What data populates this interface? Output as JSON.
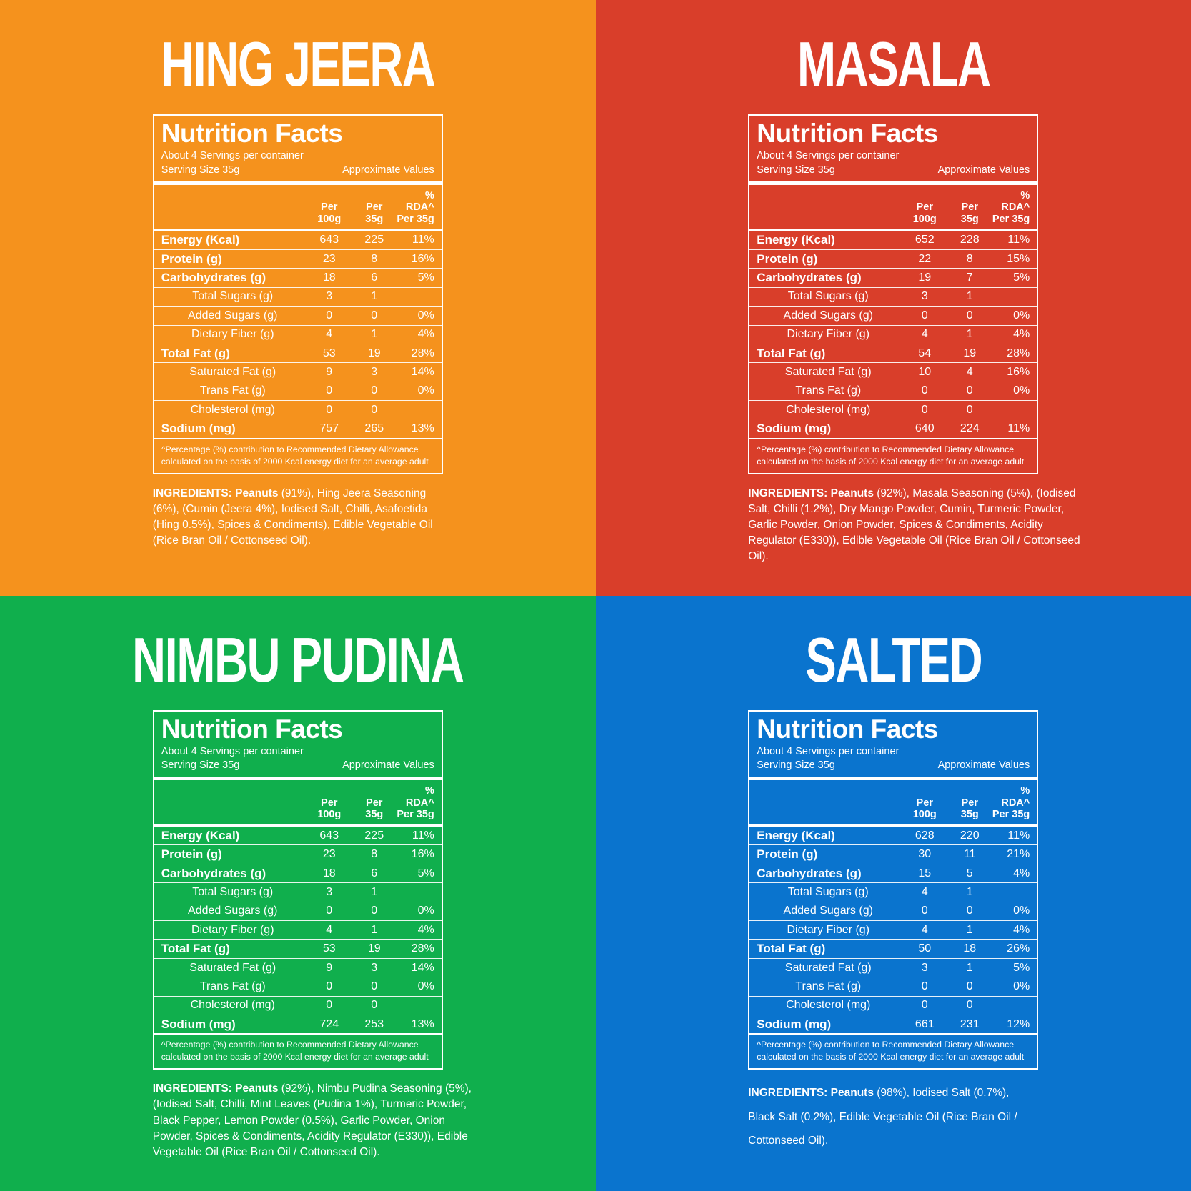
{
  "table": {
    "title": "Nutrition Facts",
    "servings": "About 4 Servings per container",
    "serving_size": "Serving Size 35g",
    "approximate": "Approximate Values",
    "col1_l1": "Per",
    "col1_l2": "100g",
    "col2_l1": "Per",
    "col2_l2": "35g",
    "col3_l1": "% RDA^",
    "col3_l2": "Per 35g",
    "footnote": "^Percentage (%) contribution to Recommended Dietary Allowance calculated on the basis of 2000 Kcal energy diet for an average adult"
  },
  "rows": [
    {
      "label": "Energy (Kcal)",
      "style": "bold"
    },
    {
      "label": "Protein (g)",
      "style": "bold"
    },
    {
      "label": "Carbohydrates (g)",
      "style": "bold"
    },
    {
      "label": "Total Sugars (g)",
      "style": "sub"
    },
    {
      "label": "Added Sugars (g)",
      "style": "sub"
    },
    {
      "label": "Dietary Fiber (g)",
      "style": "sub"
    },
    {
      "label": "Total Fat (g)",
      "style": "bold"
    },
    {
      "label": "Saturated Fat (g)",
      "style": "sub"
    },
    {
      "label": "Trans Fat (g)",
      "style": "sub"
    },
    {
      "label": "Cholesterol (mg)",
      "style": "sub"
    },
    {
      "label": "Sodium (mg)",
      "style": "bold"
    }
  ],
  "flavors": [
    {
      "key": "hing-jeera",
      "title": "HING JEERA",
      "background": "#F5921D",
      "values": [
        [
          "643",
          "225",
          "11%"
        ],
        [
          "23",
          "8",
          "16%"
        ],
        [
          "18",
          "6",
          "5%"
        ],
        [
          "3",
          "1",
          ""
        ],
        [
          "0",
          "0",
          "0%"
        ],
        [
          "4",
          "1",
          "4%"
        ],
        [
          "53",
          "19",
          "28%"
        ],
        [
          "9",
          "3",
          "14%"
        ],
        [
          "0",
          "0",
          "0%"
        ],
        [
          "0",
          "0",
          ""
        ],
        [
          "757",
          "265",
          "13%"
        ]
      ],
      "ingredients_bold": "INGREDIENTS: Peanuts",
      "ingredients_rest": " (91%), Hing Jeera Seasoning (6%), (Cumin (Jeera 4%), Iodised Salt, Chilli, Asafoetida (Hing 0.5%), Spices & Condiments), Edible Vegetable Oil (Rice Bran Oil / Cottonseed Oil)."
    },
    {
      "key": "masala",
      "title": "MASALA",
      "background": "#D93E2A",
      "values": [
        [
          "652",
          "228",
          "11%"
        ],
        [
          "22",
          "8",
          "15%"
        ],
        [
          "19",
          "7",
          "5%"
        ],
        [
          "3",
          "1",
          ""
        ],
        [
          "0",
          "0",
          "0%"
        ],
        [
          "4",
          "1",
          "4%"
        ],
        [
          "54",
          "19",
          "28%"
        ],
        [
          "10",
          "4",
          "16%"
        ],
        [
          "0",
          "0",
          "0%"
        ],
        [
          "0",
          "0",
          ""
        ],
        [
          "640",
          "224",
          "11%"
        ]
      ],
      "ingredients_bold": "INGREDIENTS: Peanuts",
      "ingredients_rest": " (92%), Masala Seasoning (5%), (Iodised Salt, Chilli (1.2%), Dry Mango Powder, Cumin, Turmeric Powder, Garlic Powder, Onion Powder, Spices & Condiments, Acidity Regulator (E330)), Edible Vegetable Oil (Rice Bran Oil / Cottonseed Oil)."
    },
    {
      "key": "nimbu-pudina",
      "title": "NIMBU PUDINA",
      "background": "#10AF4D",
      "values": [
        [
          "643",
          "225",
          "11%"
        ],
        [
          "23",
          "8",
          "16%"
        ],
        [
          "18",
          "6",
          "5%"
        ],
        [
          "3",
          "1",
          ""
        ],
        [
          "0",
          "0",
          "0%"
        ],
        [
          "4",
          "1",
          "4%"
        ],
        [
          "53",
          "19",
          "28%"
        ],
        [
          "9",
          "3",
          "14%"
        ],
        [
          "0",
          "0",
          "0%"
        ],
        [
          "0",
          "0",
          ""
        ],
        [
          "724",
          "253",
          "13%"
        ]
      ],
      "ingredients_bold": "INGREDIENTS: Peanuts",
      "ingredients_rest": " (92%), Nimbu Pudina Seasoning (5%), (Iodised Salt, Chilli, Mint Leaves (Pudina 1%), Turmeric Powder, Black Pepper, Lemon Powder (0.5%), Garlic Powder, Onion Powder, Spices & Condiments, Acidity Regulator (E330)), Edible Vegetable Oil (Rice Bran Oil / Cottonseed Oil)."
    },
    {
      "key": "salted",
      "title": "SALTED",
      "background": "#0A74CE",
      "values": [
        [
          "628",
          "220",
          "11%"
        ],
        [
          "30",
          "11",
          "21%"
        ],
        [
          "15",
          "5",
          "4%"
        ],
        [
          "4",
          "1",
          ""
        ],
        [
          "0",
          "0",
          "0%"
        ],
        [
          "4",
          "1",
          "4%"
        ],
        [
          "50",
          "18",
          "26%"
        ],
        [
          "3",
          "1",
          "5%"
        ],
        [
          "0",
          "0",
          "0%"
        ],
        [
          "0",
          "0",
          ""
        ],
        [
          "661",
          "231",
          "12%"
        ]
      ],
      "ingredients_bold": "INGREDIENTS: Peanuts",
      "ingredients_rest": " (98%), Iodised Salt (0.7%), Black Salt (0.2%), Edible Vegetable Oil (Rice Bran Oil / Cottonseed Oil)."
    }
  ]
}
